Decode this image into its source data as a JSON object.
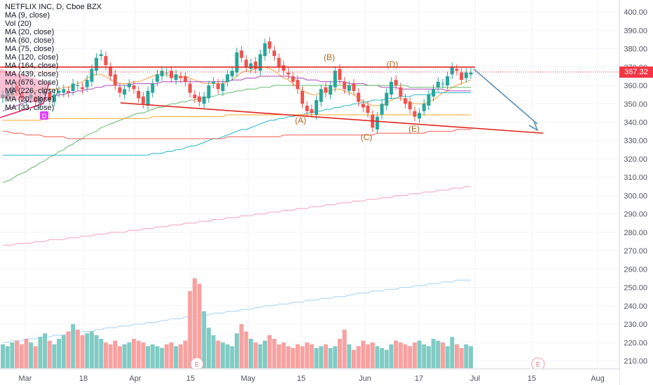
{
  "legend": {
    "title": "NETFLIX INC, D, Cboe BZX",
    "indicators": [
      "MA (9, close)",
      "Vol (20)",
      "MA (20, close)",
      "MA (60, close)",
      "MA (75, close)",
      "MA (120, close)",
      "MA (164, close)",
      "MA (439, close)",
      "MA (676, close)",
      "MA (226, close)",
      "MA (20, close)",
      "MA (33, close)"
    ]
  },
  "last_price": "367.32",
  "colors": {
    "up": "#26a69a",
    "down": "#ef5350",
    "vol_up": "#80cbc4",
    "vol_down": "#f7a1a1",
    "trend": "#e3261f",
    "arrow": "#5b8db6",
    "label": "#b5651d"
  },
  "chart_data": {
    "type": "candlestick",
    "title": "NETFLIX INC, D, Cboe BZX",
    "y_ticks": [
      210,
      220,
      230,
      240,
      250,
      260,
      270,
      280,
      290,
      300,
      310,
      320,
      330,
      340,
      350,
      360,
      370,
      380,
      390,
      400
    ],
    "ylim": [
      206,
      405
    ],
    "x_ticks": [
      "Mar",
      "18",
      "Apr",
      "15",
      "May",
      "15",
      "Jun",
      "17",
      "Jul",
      "15",
      "Aug"
    ],
    "wave_labels": [
      "(A)",
      "(B)",
      "(C)",
      "(D)",
      "(E)"
    ],
    "event_markers": [
      "E",
      "E"
    ],
    "close": [
      355,
      356,
      359,
      357,
      353,
      352,
      355,
      351,
      354,
      357,
      352,
      355,
      357,
      358,
      356,
      361,
      360,
      358,
      363,
      369,
      375,
      377,
      371,
      365,
      360,
      356,
      358,
      361,
      358,
      353,
      350,
      357,
      361,
      366,
      368,
      367,
      364,
      366,
      364,
      362,
      356,
      353,
      351,
      354,
      360,
      362,
      358,
      361,
      366,
      368,
      378,
      375,
      370,
      372,
      369,
      377,
      383,
      380,
      376,
      370,
      368,
      366,
      362,
      358,
      350,
      346,
      345,
      352,
      358,
      356,
      360,
      368,
      363,
      358,
      360,
      357,
      351,
      348,
      345,
      337,
      343,
      350,
      356,
      362,
      360,
      354,
      350,
      347,
      343,
      345,
      350,
      355,
      358,
      362,
      361,
      365,
      370,
      368,
      363,
      367,
      367
    ],
    "volume": [
      219,
      218,
      220,
      221,
      219,
      222,
      220,
      218,
      223,
      225,
      221,
      219,
      222,
      224,
      226,
      230,
      227,
      224,
      225,
      226,
      224,
      222,
      220,
      219,
      221,
      218,
      219,
      220,
      222,
      221,
      220,
      218,
      219,
      218,
      217,
      219,
      220,
      218,
      219,
      221,
      248,
      255,
      252,
      237,
      228,
      224,
      221,
      220,
      219,
      218,
      225,
      230,
      226,
      222,
      220,
      219,
      221,
      224,
      222,
      219,
      220,
      218,
      217,
      219,
      218,
      220,
      219,
      217,
      218,
      219,
      217,
      218,
      222,
      227,
      219,
      216,
      218,
      221,
      219,
      220,
      218,
      217,
      216,
      219,
      221,
      220,
      219,
      218,
      220,
      221,
      219,
      218,
      222,
      221,
      220,
      218,
      223,
      219,
      217,
      219,
      218
    ],
    "series": [
      {
        "name": "MA (20, close)",
        "color": "#f7931e",
        "values": [
          354,
          355,
          355,
          355,
          356,
          356,
          357,
          357,
          358,
          358,
          358,
          358,
          358,
          359,
          359,
          360,
          361,
          362,
          364,
          365,
          366,
          366,
          365,
          363,
          362,
          361,
          361,
          361,
          362,
          362,
          363,
          364,
          365,
          366,
          366,
          366,
          365,
          365,
          365,
          365,
          364,
          363,
          362,
          361,
          361,
          361,
          361,
          361,
          362,
          363,
          365,
          367,
          368,
          368,
          369,
          370,
          370,
          369,
          368,
          366,
          364,
          363,
          361,
          359,
          357,
          356,
          355,
          355,
          356,
          357,
          357,
          358,
          358,
          357,
          356,
          355,
          353,
          351,
          350,
          349,
          349,
          349,
          350,
          352,
          353,
          353,
          352,
          351,
          350,
          350,
          350,
          351,
          352,
          354,
          356,
          357,
          359,
          360,
          361,
          362,
          363
        ]
      },
      {
        "name": "MA (60, close)",
        "color": "#9c27b0",
        "values": [
          346,
          347,
          348,
          349,
          350,
          351,
          351,
          352,
          352,
          353,
          354,
          354,
          355,
          355,
          356,
          356,
          357,
          357,
          358,
          358,
          359,
          359,
          360,
          360,
          360,
          360,
          360,
          360,
          361,
          361,
          361,
          361,
          361,
          361,
          362,
          362,
          362,
          362,
          362,
          362,
          362,
          362,
          362,
          362,
          362,
          362,
          362,
          362,
          362,
          363,
          363,
          363,
          364,
          364,
          364,
          365,
          365,
          365,
          365,
          365,
          365,
          365,
          364,
          364,
          364,
          363,
          363,
          363,
          362,
          362,
          362,
          362,
          362,
          362,
          361,
          361,
          361,
          361,
          360,
          360,
          360,
          359,
          359,
          359,
          359,
          358,
          358,
          358,
          358,
          358,
          358,
          358,
          358,
          358,
          358,
          357,
          357,
          357,
          357,
          357,
          357
        ]
      },
      {
        "name": "MA (120, close)",
        "color": "#4caf50",
        "values": [
          307,
          308,
          309,
          311,
          312,
          313,
          315,
          316,
          318,
          319,
          321,
          322,
          324,
          325,
          327,
          328,
          330,
          331,
          333,
          334,
          335,
          337,
          338,
          339,
          340,
          341,
          342,
          343,
          344,
          345,
          345,
          346,
          347,
          348,
          348,
          349,
          350,
          350,
          351,
          351,
          352,
          352,
          353,
          353,
          354,
          354,
          355,
          355,
          356,
          356,
          357,
          357,
          358,
          358,
          358,
          359,
          359,
          359,
          360,
          360,
          360,
          360,
          360,
          360,
          360,
          360,
          360,
          360,
          360,
          360,
          360,
          360,
          360,
          360,
          360,
          360,
          360,
          360,
          360,
          360,
          360,
          360,
          360,
          360,
          360,
          360,
          360,
          359,
          359,
          359,
          359,
          359,
          359,
          359,
          359,
          359,
          359,
          359,
          359,
          359,
          359
        ]
      },
      {
        "name": "MA (164, close)",
        "color": "#00acc1",
        "values": [
          322,
          322,
          322,
          322,
          322,
          322,
          322,
          322,
          322,
          322,
          322,
          322,
          322,
          322,
          322,
          322,
          322,
          322,
          322,
          322,
          322,
          322,
          322,
          322,
          322,
          322,
          322,
          322,
          322,
          322,
          322,
          322,
          323,
          323,
          323,
          324,
          324,
          325,
          325,
          326,
          327,
          327,
          328,
          329,
          330,
          331,
          331,
          332,
          333,
          334,
          335,
          336,
          336,
          337,
          338,
          339,
          340,
          341,
          341,
          342,
          342,
          343,
          343,
          344,
          344,
          345,
          345,
          346,
          346,
          347,
          347,
          348,
          348,
          349,
          349,
          350,
          350,
          351,
          351,
          352,
          352,
          352,
          353,
          353,
          353,
          354,
          354,
          354,
          355,
          355,
          355,
          355,
          356,
          356,
          356,
          356,
          356,
          356,
          356,
          356,
          356
        ]
      },
      {
        "name": "MA (226, close)",
        "color": "#ff9800",
        "values": [
          341,
          341,
          341,
          341,
          341,
          341,
          341,
          341,
          341,
          342,
          342,
          342,
          342,
          342,
          342,
          342,
          342,
          342,
          342,
          342,
          342,
          342,
          342,
          342,
          342,
          342,
          342,
          342,
          342,
          342,
          342,
          342,
          343,
          343,
          343,
          343,
          343,
          343,
          343,
          343,
          343,
          343,
          343,
          343,
          343,
          343,
          343,
          343,
          344,
          344,
          344,
          344,
          344,
          344,
          344,
          344,
          344,
          344,
          344,
          344,
          344,
          344,
          344,
          344,
          344,
          344,
          344,
          344,
          344,
          344,
          344,
          344,
          344,
          344,
          344,
          344,
          344,
          344,
          344,
          344,
          344,
          344,
          344,
          344,
          344,
          344,
          344,
          344,
          344,
          344,
          344,
          344,
          344,
          344,
          344,
          344,
          344,
          344,
          344,
          344,
          344
        ]
      },
      {
        "name": "MA (439, close)",
        "color": "#f44336",
        "values": [
          335,
          335,
          334,
          334,
          334,
          333,
          333,
          333,
          333,
          332,
          332,
          332,
          332,
          332,
          331,
          331,
          331,
          331,
          331,
          331,
          331,
          331,
          331,
          331,
          331,
          331,
          331,
          331,
          331,
          331,
          331,
          331,
          331,
          331,
          331,
          331,
          331,
          331,
          331,
          331,
          331,
          331,
          331,
          331,
          331,
          331,
          331,
          331,
          332,
          332,
          332,
          332,
          332,
          332,
          332,
          332,
          332,
          332,
          332,
          332,
          333,
          333,
          333,
          333,
          333,
          333,
          333,
          333,
          333,
          333,
          333,
          333,
          333,
          333,
          333,
          333,
          333,
          333,
          333,
          333,
          334,
          334,
          334,
          334,
          334,
          334,
          334,
          334,
          334,
          334,
          334,
          335,
          335,
          335,
          335,
          335,
          335,
          336,
          336,
          336,
          336
        ]
      },
      {
        "name": "MA (676, close)",
        "color": "#f48fb1",
        "values": [
          273,
          273,
          273,
          274,
          274,
          274,
          274,
          275,
          275,
          275,
          276,
          276,
          276,
          276,
          277,
          277,
          277,
          278,
          278,
          278,
          279,
          279,
          279,
          280,
          280,
          280,
          280,
          281,
          281,
          281,
          282,
          282,
          282,
          283,
          283,
          283,
          284,
          284,
          284,
          285,
          285,
          285,
          286,
          286,
          286,
          287,
          287,
          287,
          288,
          288,
          288,
          289,
          289,
          289,
          290,
          290,
          290,
          291,
          291,
          291,
          292,
          292,
          292,
          293,
          293,
          293,
          294,
          294,
          294,
          295,
          295,
          295,
          296,
          296,
          296,
          297,
          297,
          297,
          298,
          298,
          298,
          299,
          299,
          299,
          300,
          300,
          300,
          301,
          301,
          301,
          302,
          302,
          302,
          303,
          303,
          303,
          304,
          304,
          304,
          305,
          305
        ]
      },
      {
        "name": "Vol (20)",
        "color": "#90caf9",
        "values": [
          220,
          220,
          221,
          221,
          221,
          222,
          222,
          222,
          223,
          223,
          223,
          224,
          224,
          224,
          225,
          225,
          225,
          226,
          226,
          226,
          227,
          227,
          228,
          228,
          228,
          229,
          229,
          229,
          230,
          230,
          230,
          231,
          231,
          231,
          232,
          232,
          233,
          233,
          233,
          234,
          234,
          234,
          235,
          235,
          235,
          236,
          236,
          236,
          237,
          237,
          237,
          238,
          238,
          238,
          239,
          239,
          240,
          240,
          240,
          241,
          241,
          241,
          242,
          242,
          242,
          243,
          243,
          243,
          244,
          244,
          244,
          245,
          245,
          245,
          246,
          246,
          247,
          247,
          247,
          248,
          248,
          248,
          249,
          249,
          249,
          250,
          250,
          250,
          251,
          251,
          251,
          252,
          252,
          252,
          253,
          253,
          253,
          254,
          254,
          254,
          254
        ]
      }
    ]
  }
}
